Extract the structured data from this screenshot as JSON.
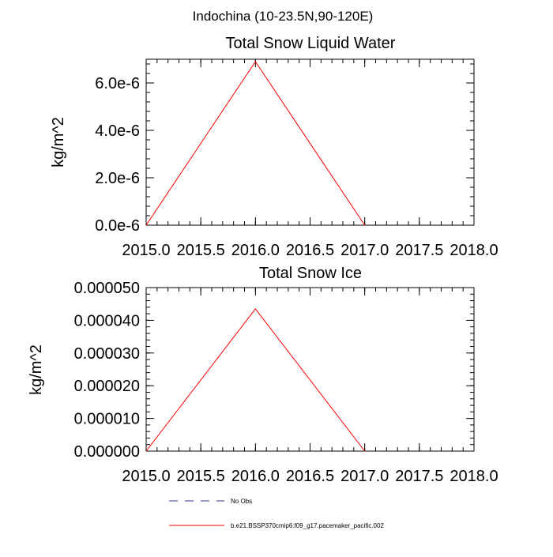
{
  "figure": {
    "title": "Indochina (10-23.5N,90-120E)",
    "legend": [
      {
        "label": "No Obs",
        "color": "#3333aa",
        "dash": "dashed"
      },
      {
        "label": "b.e21.BSSP370cmip6.f09_g17.pacemaker_pacific.002",
        "color": "#ff0000",
        "dash": "solid"
      }
    ]
  },
  "chart_data": [
    {
      "type": "line",
      "title": "Total Snow Liquid Water",
      "ylabel": "kg/m^2",
      "xlim": [
        2015.0,
        2018.0
      ],
      "ylim": [
        0,
        7e-06
      ],
      "xticks": [
        2015.0,
        2015.5,
        2016.0,
        2016.5,
        2017.0,
        2017.5,
        2018.0
      ],
      "xtick_labels": [
        "2015.0",
        "2015.5",
        "2016.0",
        "2016.5",
        "2017.0",
        "2017.5",
        "2018.0"
      ],
      "yticks": [
        0,
        2e-06,
        4e-06,
        6e-06
      ],
      "ytick_labels": [
        "0.0e-6",
        "2.0e-6",
        "4.0e-6",
        "6.0e-6"
      ],
      "series": [
        {
          "name": "b.e21.BSSP370cmip6.f09_g17.pacemaker_pacific.002",
          "color": "#ff0000",
          "x": [
            2015.0,
            2016.0,
            2017.0
          ],
          "y": [
            0,
            6.9e-06,
            0
          ]
        }
      ]
    },
    {
      "type": "line",
      "title": "Total Snow Ice",
      "ylabel": "kg/m^2",
      "xlim": [
        2015.0,
        2018.0
      ],
      "ylim": [
        0,
        5e-05
      ],
      "xticks": [
        2015.0,
        2015.5,
        2016.0,
        2016.5,
        2017.0,
        2017.5,
        2018.0
      ],
      "xtick_labels": [
        "2015.0",
        "2015.5",
        "2016.0",
        "2016.5",
        "2017.0",
        "2017.5",
        "2018.0"
      ],
      "yticks": [
        0,
        1e-05,
        2e-05,
        3e-05,
        4e-05,
        5e-05
      ],
      "ytick_labels": [
        "0.000000",
        "0.000010",
        "0.000020",
        "0.000030",
        "0.000040",
        "0.000050"
      ],
      "series": [
        {
          "name": "b.e21.BSSP370cmip6.f09_g17.pacemaker_pacific.002",
          "color": "#ff0000",
          "x": [
            2015.0,
            2016.0,
            2017.0
          ],
          "y": [
            0,
            4.35e-05,
            0
          ]
        }
      ]
    }
  ]
}
